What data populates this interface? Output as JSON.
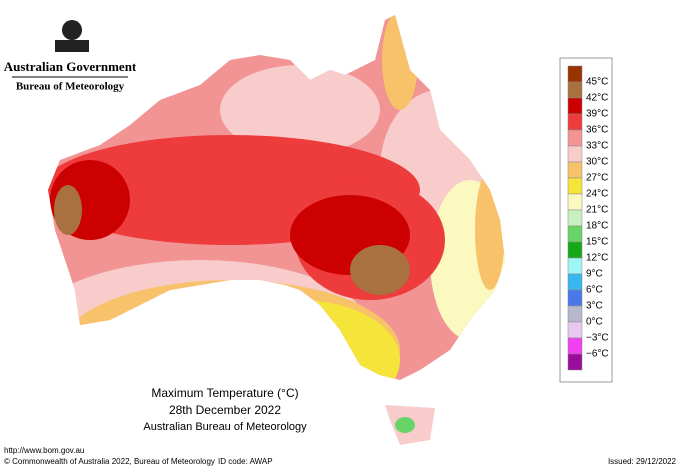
{
  "header": {
    "government": "Australian Government",
    "agency": "Bureau of Meteorology"
  },
  "title": {
    "line1": "Maximum Temperature (°C)",
    "line2": "28th December 2022",
    "line3": "Australian Bureau of Meteorology"
  },
  "footer": {
    "url": "http://www.bom.gov.au",
    "copyright": "© Commonwealth of Australia 2022, Bureau of Meteorology",
    "id_code": "ID code: AWAP",
    "issued": "Issued: 29/12/2022"
  },
  "legend": {
    "colors": [
      "#993300",
      "#a8713f",
      "#cc0000",
      "#ee3b3b",
      "#f29494",
      "#f9cccc",
      "#f8c26a",
      "#f5e43a",
      "#fbf9c0",
      "#c9f0c0",
      "#66d466",
      "#16a816",
      "#9ff5f5",
      "#38b8f0",
      "#4a78e8",
      "#b8b8cc",
      "#e8c8f0",
      "#f040f0",
      "#9a0c9a"
    ],
    "labels": [
      "45°C",
      "42°C",
      "39°C",
      "36°C",
      "33°C",
      "30°C",
      "27°C",
      "24°C",
      "21°C",
      "18°C",
      "15°C",
      "12°C",
      "9°C",
      "6°C",
      "3°C",
      "0°C",
      "−3°C",
      "−6°C"
    ]
  }
}
